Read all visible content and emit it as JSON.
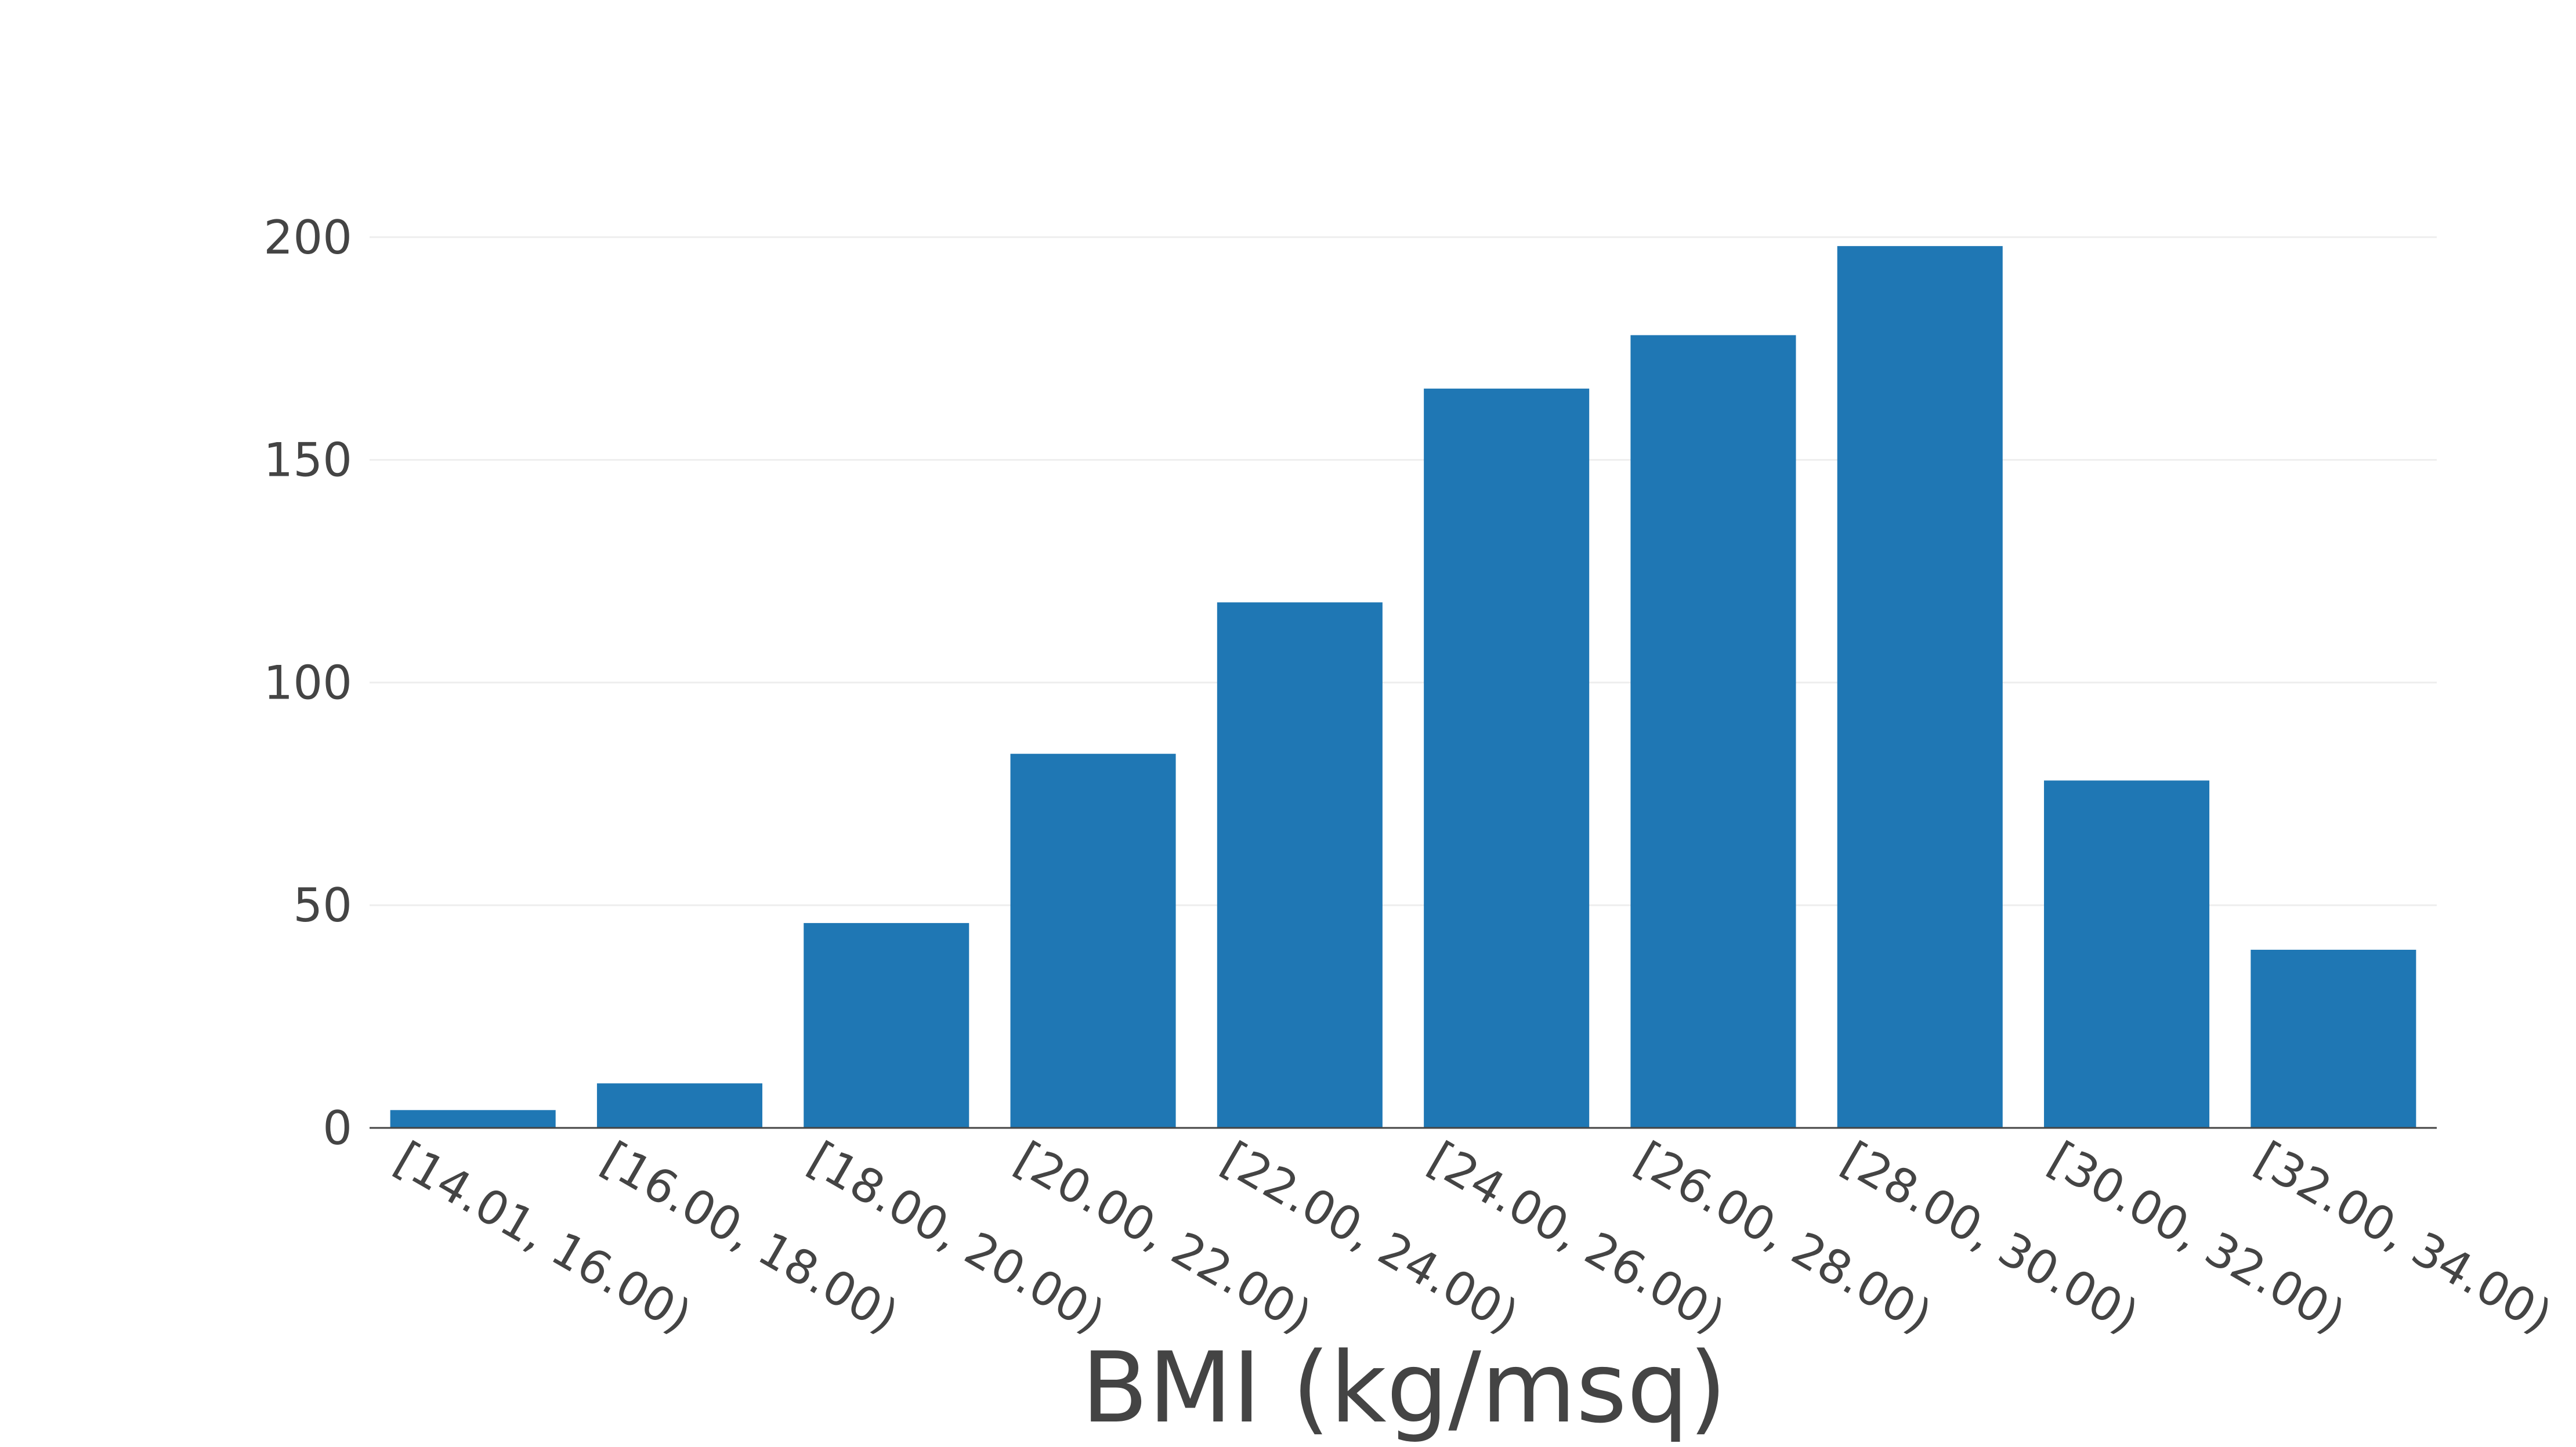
{
  "chart_data": {
    "type": "bar",
    "title": "",
    "xlabel": "BMI (kg/msq)",
    "ylabel": "",
    "categories": [
      "[14.01, 16.00)",
      "[16.00, 18.00)",
      "[18.00, 20.00)",
      "[20.00, 22.00)",
      "[22.00, 24.00)",
      "[24.00, 26.00)",
      "[26.00, 28.00)",
      "[28.00, 30.00)",
      "[30.00, 32.00)",
      "[32.00, 34.00)"
    ],
    "values": [
      4,
      10,
      46,
      84,
      118,
      166,
      178,
      198,
      78,
      40
    ],
    "ylim": [
      0,
      213
    ],
    "yticks": [
      0,
      50,
      100,
      150,
      200
    ],
    "grid": true,
    "legend": "none",
    "bar_color": "#1f77b4"
  }
}
